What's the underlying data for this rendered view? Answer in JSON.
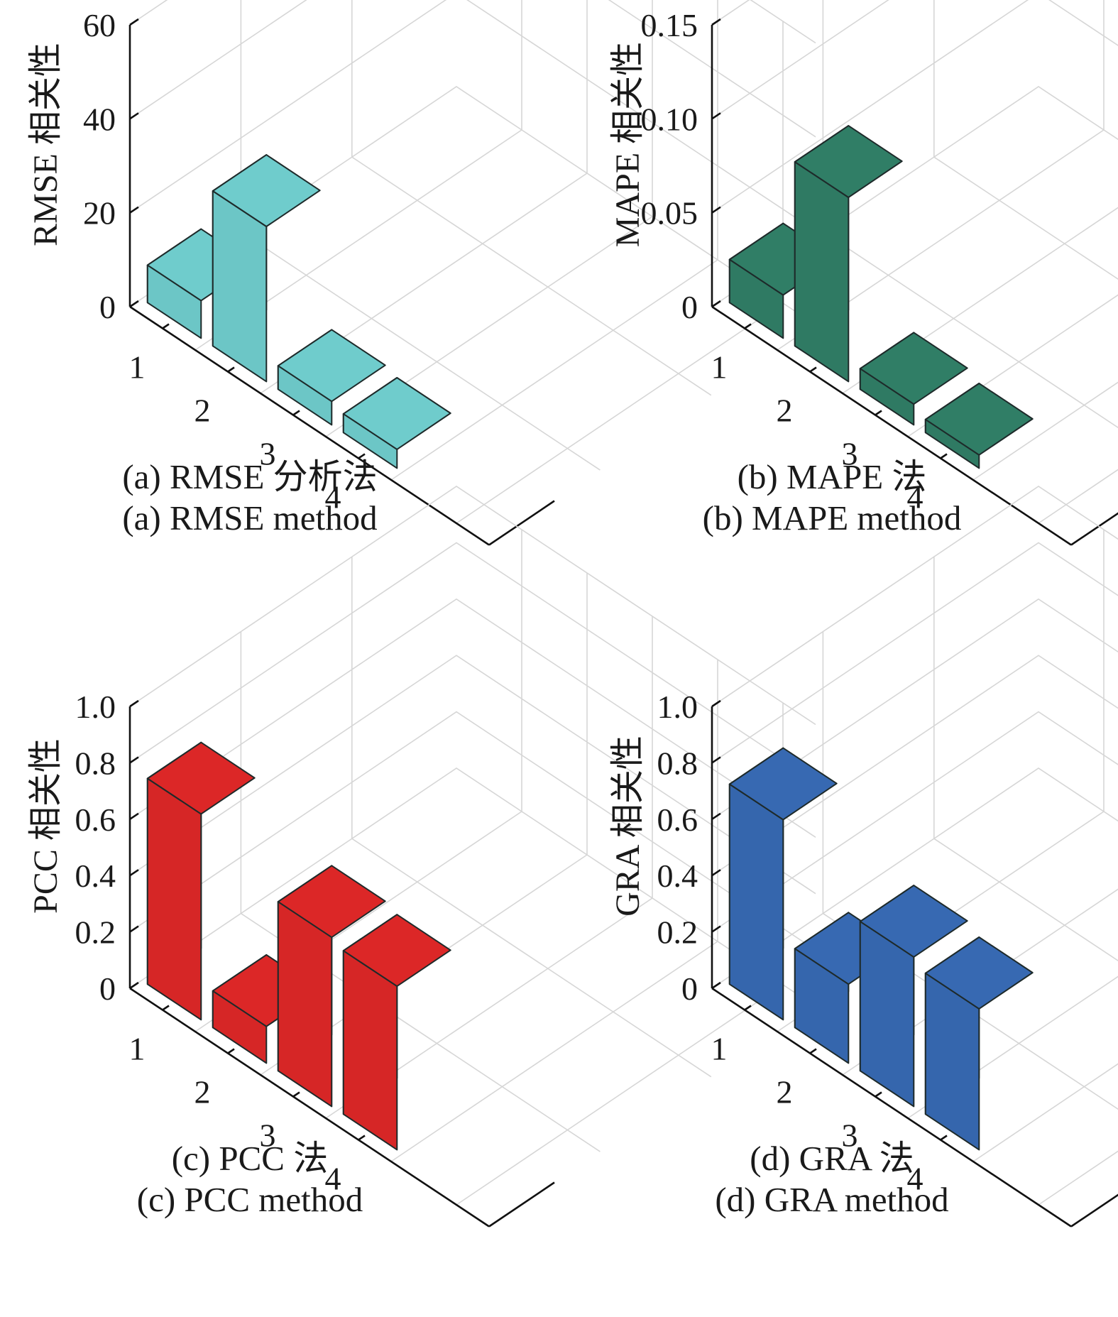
{
  "chart_data": [
    {
      "type": "bar",
      "categories": [
        "1",
        "2",
        "3",
        "4"
      ],
      "values": [
        8,
        33,
        5,
        4
      ],
      "ylabel": "RMSE 相关性",
      "yticks": [
        "0",
        "20",
        "40",
        "60"
      ],
      "ylim": [
        0,
        60
      ],
      "grid": true,
      "color": "#6cc6c6",
      "caption_cn": "(a) RMSE 分析法",
      "caption_en": "(a) RMSE method"
    },
    {
      "type": "bar",
      "categories": [
        "1",
        "2",
        "3",
        "4"
      ],
      "values": [
        0.023,
        0.098,
        0.011,
        0.007
      ],
      "ylabel": "MAPE 相关性",
      "yticks": [
        "0",
        "0.05",
        "0.10",
        "0.15"
      ],
      "ylim": [
        0,
        0.15
      ],
      "grid": true,
      "color": "#2f7a63",
      "caption_cn": "(b) MAPE 法",
      "caption_en": "(b) MAPE method"
    },
    {
      "type": "bar",
      "categories": [
        "1",
        "2",
        "3",
        "4"
      ],
      "values": [
        0.73,
        0.13,
        0.6,
        0.58
      ],
      "ylabel": "PCC 相关性",
      "yticks": [
        "0",
        "0.2",
        "0.4",
        "0.6",
        "0.8",
        "1.0"
      ],
      "ylim": [
        0,
        1.0
      ],
      "grid": true,
      "color": "#d62626",
      "caption_cn": "(c) PCC 法",
      "caption_en": "(c) PCC method"
    },
    {
      "type": "bar",
      "categories": [
        "1",
        "2",
        "3",
        "4"
      ],
      "values": [
        0.71,
        0.28,
        0.53,
        0.5
      ],
      "ylabel": "GRA 相关性",
      "yticks": [
        "0",
        "0.2",
        "0.4",
        "0.6",
        "0.8",
        "1.0"
      ],
      "ylim": [
        0,
        1.0
      ],
      "grid": true,
      "color": "#3566ad",
      "caption_cn": "(d) GRA 法",
      "caption_en": "(d) GRA method"
    }
  ]
}
